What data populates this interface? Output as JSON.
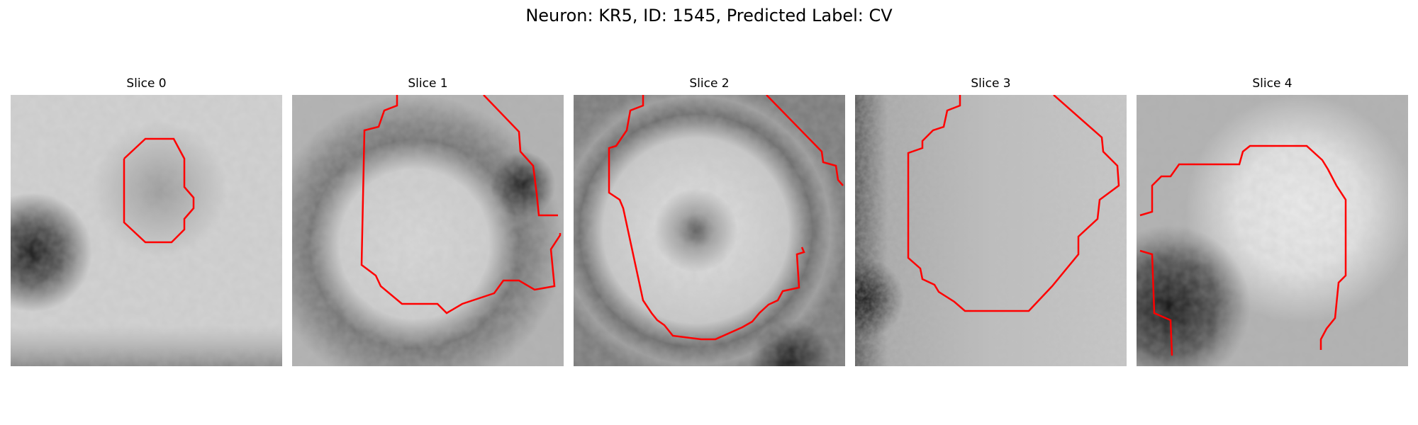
{
  "figure": {
    "title": "Neuron: KR5, ID: 1545, Predicted Label: CV"
  },
  "slices": [
    {
      "title": "Slice 0",
      "icon": "grayscale-microscopy-slice-with-red-contour",
      "contour_color": "#ff0000"
    },
    {
      "title": "Slice 1",
      "icon": "grayscale-microscopy-slice-with-red-contour",
      "contour_color": "#ff0000"
    },
    {
      "title": "Slice 2",
      "icon": "grayscale-microscopy-slice-with-red-contour",
      "contour_color": "#ff0000"
    },
    {
      "title": "Slice 3",
      "icon": "grayscale-microscopy-slice-with-red-contour",
      "contour_color": "#ff0000"
    },
    {
      "title": "Slice 4",
      "icon": "grayscale-microscopy-slice-with-red-contour",
      "contour_color": "#ff0000"
    }
  ]
}
